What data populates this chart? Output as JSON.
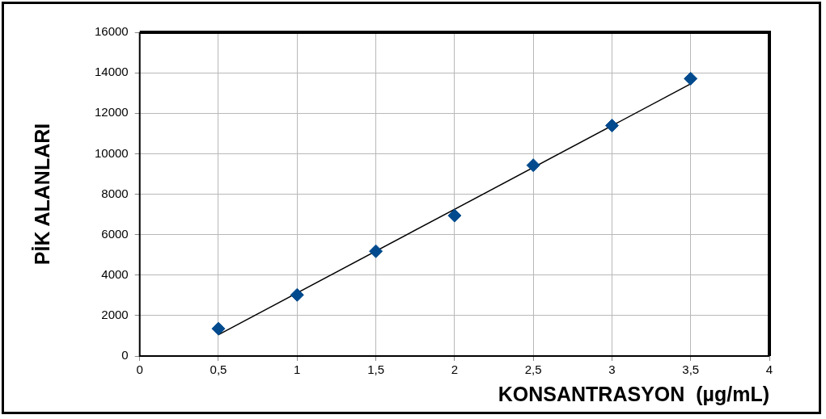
{
  "chart_data": {
    "type": "scatter",
    "xlabel": "KONSANTRASYON  (µg/mL)",
    "ylabel": "PİK ALANLARI",
    "xlim": [
      0,
      4
    ],
    "xticks": [
      0,
      {
        "value": 0.5,
        "label": "0,5"
      },
      1,
      {
        "value": 1.5,
        "label": "1,5"
      },
      2,
      {
        "value": 2.5,
        "label": "2,5"
      },
      3,
      {
        "value": 3.5,
        "label": "3,5"
      },
      4
    ],
    "ylim": [
      0,
      16000
    ],
    "yticks": [
      0,
      2000,
      4000,
      6000,
      8000,
      10000,
      12000,
      14000,
      16000
    ],
    "grid": true,
    "legend": false,
    "marker": "diamond",
    "series": [
      {
        "color": "#004a8d",
        "x": [
          0.5,
          1,
          1.5,
          2,
          2.5,
          3,
          3.5
        ],
        "values": [
          1350,
          3020,
          5180,
          6940,
          9430,
          11390,
          13710
        ]
      },
      {
        "type": "line",
        "color": "#000000",
        "marker": "none",
        "line_style": "solid",
        "x": [
          0.5,
          3.5
        ],
        "values": [
          1050,
          13450
        ]
      }
    ]
  }
}
